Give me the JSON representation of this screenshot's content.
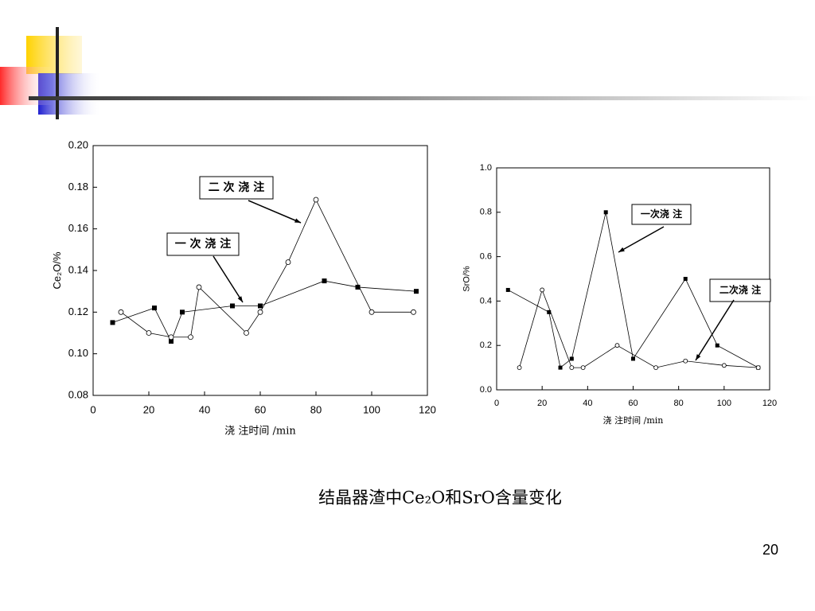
{
  "chart_data": [
    {
      "type": "line",
      "ylabel": "Ce₂O/%",
      "xlabel": "浇 注时间 /min",
      "xlim": [
        0,
        120
      ],
      "xticks": [
        0,
        20,
        40,
        60,
        80,
        100,
        120
      ],
      "ylim": [
        0.08,
        0.2
      ],
      "yticks": [
        0.08,
        {
          "value": 0.1,
          "label": "0.10"
        },
        0.12,
        0.14,
        0.16,
        0.18,
        {
          "value": 0.2,
          "label": "0.20"
        }
      ],
      "series": [
        {
          "name": "一 次 浇  注",
          "color": "#000",
          "marker": "square",
          "x": [
            7,
            22,
            28,
            32,
            50,
            60,
            83,
            95,
            116
          ],
          "values": [
            0.115,
            0.122,
            0.106,
            0.12,
            0.123,
            0.123,
            0.135,
            0.132,
            0.13
          ]
        },
        {
          "name": "二 次 浇  注",
          "color": "#000",
          "marker": "circle",
          "x": [
            10,
            20,
            28,
            35,
            38,
            55,
            60,
            70,
            80,
            100,
            115
          ],
          "values": [
            0.12,
            0.11,
            0.108,
            0.108,
            0.132,
            0.11,
            0.12,
            0.144,
            0.174,
            0.12,
            0.12
          ]
        }
      ]
    },
    {
      "type": "line",
      "ylabel": "SrO/%",
      "xlabel": "浇 注时间 /min",
      "xlim": [
        0,
        120
      ],
      "xticks": [
        0,
        20,
        40,
        60,
        80,
        100,
        120
      ],
      "ylim": [
        0,
        1
      ],
      "yticks": [
        {
          "value": 0,
          "label": "0.0"
        },
        0.2,
        0.4,
        0.6,
        0.8,
        {
          "value": 1,
          "label": "1.0"
        }
      ],
      "series": [
        {
          "name": "一次浇  注",
          "color": "#000",
          "marker": "square",
          "x": [
            5,
            23,
            28,
            33,
            48,
            60,
            83,
            97,
            115
          ],
          "values": [
            0.45,
            0.35,
            0.1,
            0.14,
            0.8,
            0.14,
            0.5,
            0.2,
            0.1
          ]
        },
        {
          "name": "二次浇  注",
          "color": "#000",
          "marker": "circle",
          "x": [
            10,
            20,
            33,
            38,
            53,
            70,
            83,
            100,
            115
          ],
          "values": [
            0.1,
            0.45,
            0.1,
            0.1,
            0.2,
            0.1,
            0.13,
            0.11,
            0.1
          ]
        }
      ]
    }
  ],
  "caption": "结晶器渣中Ce₂O和SrO含量变化",
  "page_number": "20"
}
